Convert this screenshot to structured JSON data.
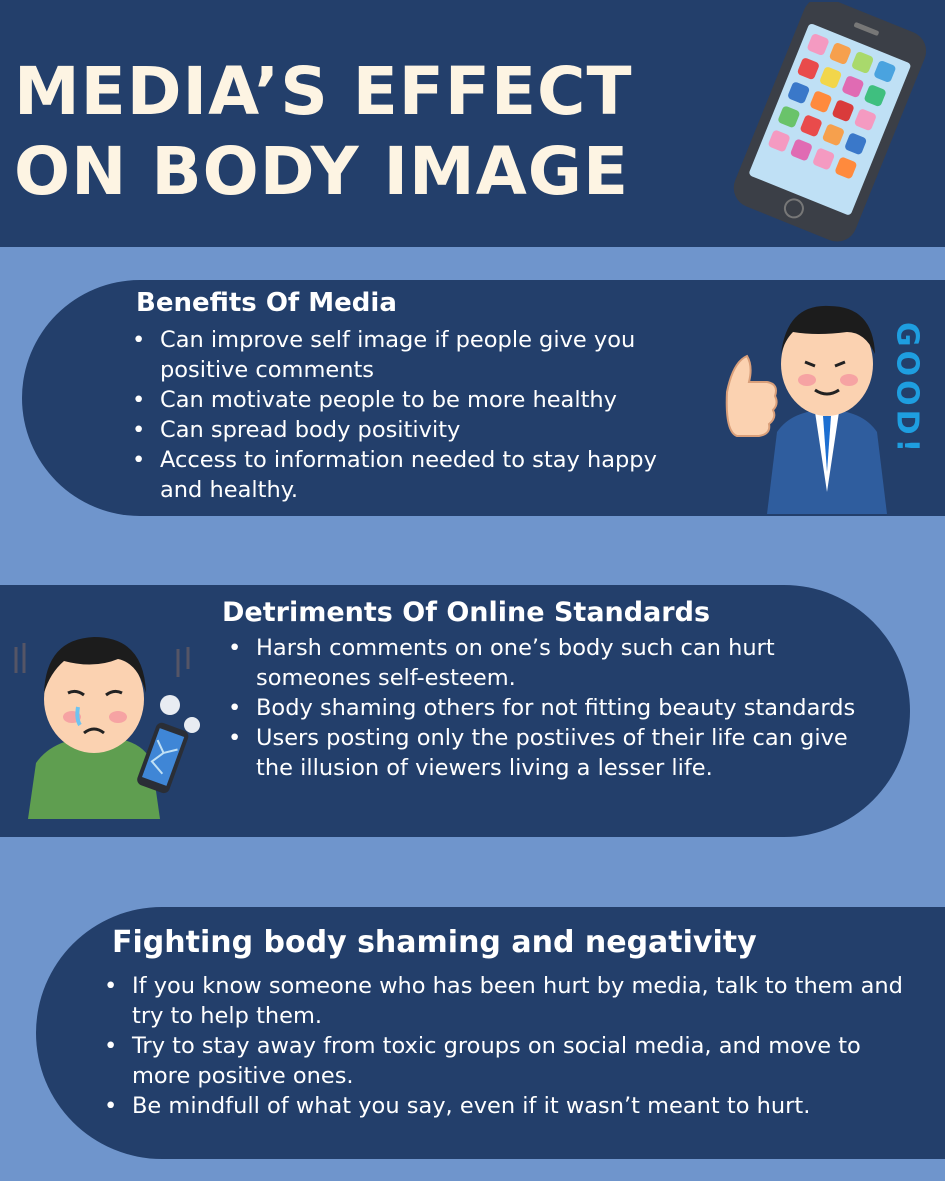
{
  "header": {
    "title": "MEDIA’S EFFECT\nON BODY IMAGE"
  },
  "benefits": {
    "heading": "Benefits Of Media",
    "items": [
      "Can improve self image if people give you positive comments",
      "Can motivate people to be more healthy",
      "Can spread body positivity",
      "Access to information needed to stay happy and healthy."
    ],
    "illustration_text": "GOOD!"
  },
  "detriments": {
    "heading": "Detriments Of Online Standards",
    "items": [
      "Harsh comments on one’s body such can hurt someones self-esteem.",
      "Body shaming others for not fitting beauty standards",
      "Users posting only the postiives of their life can give the illusion of viewers living a lesser life."
    ]
  },
  "fighting": {
    "heading": "Fighting body shaming and negativity",
    "items": [
      "If you know someone who has been hurt by media, talk to them and try to help them.",
      "Try to stay away from toxic groups on social media, and move to more positive ones.",
      "Be mindfull of what you say, even if it wasn’t meant to hurt."
    ]
  },
  "colors": {
    "page_background": "#6f95cc",
    "panel_background": "#233f6b",
    "title_text": "#fdf4e3",
    "good_text": "#1e9ee0"
  },
  "icons": [
    "smartphone-illustration",
    "thumbs-up-man-illustration",
    "sad-man-with-broken-phone-illustration"
  ]
}
